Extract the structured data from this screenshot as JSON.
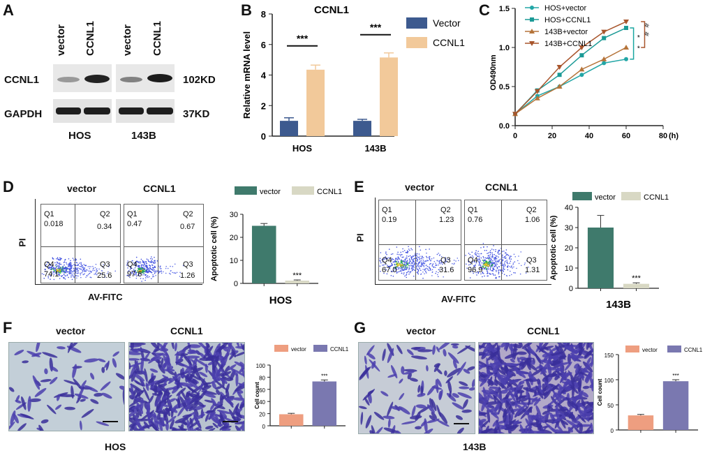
{
  "panels": [
    "A",
    "B",
    "C",
    "D",
    "E",
    "F",
    "G"
  ],
  "panelA": {
    "lanes": [
      "vector",
      "CCNL1",
      "vector",
      "CCNL1"
    ],
    "proteins": [
      "CCNL1",
      "GAPDH"
    ],
    "sizes": [
      "102KD",
      "37KD"
    ],
    "cell_lines": [
      "HOS",
      "143B"
    ]
  },
  "panelD": {
    "conditions": [
      "vector",
      "CCNL1"
    ],
    "y_label": "PI",
    "x_label": "AV-FITC",
    "quadrants": [
      {
        "q1": "Q1",
        "v1": "0.018",
        "q2": "Q2",
        "v2": "0.34",
        "q4": "Q4",
        "v4": "74.1",
        "q3": "Q3",
        "v3": "25.6"
      },
      {
        "q1": "Q1",
        "v1": "0.47",
        "q2": "Q2",
        "v2": "0.67",
        "q4": "Q4",
        "v4": "97.6",
        "q3": "Q3",
        "v3": "1.26"
      }
    ]
  },
  "panelE": {
    "conditions": [
      "vector",
      "CCNL1"
    ],
    "y_label": "PI",
    "x_label": "AV-FITC",
    "quadrants": [
      {
        "q1": "Q1",
        "v1": "0.19",
        "q2": "Q2",
        "v2": "1.23",
        "q4": "Q4",
        "v4": "67.0",
        "q3": "Q3",
        "v3": "31.6"
      },
      {
        "q1": "Q1",
        "v1": "0.76",
        "q2": "Q2",
        "v2": "1.06",
        "q4": "Q4",
        "v4": "96.9",
        "q3": "Q3",
        "v3": "1.31"
      }
    ]
  },
  "panelF": {
    "conditions": [
      "vector",
      "CCNL1"
    ],
    "cell_line": "HOS"
  },
  "panelG": {
    "conditions": [
      "vector",
      "CCNL1"
    ],
    "cell_line": "143B"
  },
  "colors": {
    "vector_blue": "#3d5a8f",
    "ccnl1_peach": "#f2c99a",
    "teal_green": "#3f7a6c",
    "beige": "#d8d8c4",
    "salmon": "#ee9e80",
    "purple": "#7a78b0",
    "hos_vector": "#22a6a6",
    "hos_ccnl1": "#1b9a96",
    "b143_vector": "#b5743a",
    "b143_ccnl1": "#a8552c"
  },
  "chart_data": [
    {
      "id": "B",
      "type": "bar",
      "title": "CCNL1",
      "categories": [
        "HOS",
        "143B"
      ],
      "series": [
        {
          "name": "Vector",
          "values": [
            1.0,
            1.0
          ],
          "errors": [
            0.2,
            0.1
          ]
        },
        {
          "name": "CCNL1",
          "values": [
            4.35,
            5.15
          ],
          "errors": [
            0.3,
            0.3
          ]
        }
      ],
      "xlabel": "",
      "ylabel": "Relative mRNA level",
      "ylim": [
        0,
        8
      ],
      "yticks": [
        "0",
        "2",
        "4",
        "6",
        "8"
      ],
      "annotations": [
        "***",
        "***"
      ],
      "legend": "top-right"
    },
    {
      "id": "C",
      "type": "line",
      "title": "",
      "xlabel": "(h)",
      "ylabel": "OD490nm",
      "xlim": [
        0,
        80
      ],
      "ylim": [
        0,
        1.5
      ],
      "xticks": [
        "0",
        "20",
        "40",
        "60",
        "80"
      ],
      "yticks": [
        "0.0",
        "0.5",
        "1.0",
        "1.5"
      ],
      "x": [
        0,
        12,
        24,
        36,
        48,
        60
      ],
      "series": [
        {
          "name": "HOS+vector",
          "values": [
            0.15,
            0.38,
            0.5,
            0.65,
            0.8,
            0.85
          ]
        },
        {
          "name": "HOS+CCNL1",
          "values": [
            0.15,
            0.45,
            0.65,
            0.9,
            1.12,
            1.25
          ]
        },
        {
          "name": "143B+vector",
          "values": [
            0.15,
            0.35,
            0.5,
            0.72,
            0.85,
            1.0
          ]
        },
        {
          "name": "143B+CCNL1",
          "values": [
            0.15,
            0.44,
            0.75,
            1.0,
            1.2,
            1.33
          ]
        }
      ],
      "annotations": [
        "*",
        "*",
        "#",
        "#"
      ],
      "legend": "top-left"
    },
    {
      "id": "D",
      "type": "bar",
      "categories": [
        "vector",
        "CCNL1"
      ],
      "values": [
        25.0,
        1.2
      ],
      "errors": [
        1.0,
        0.3
      ],
      "xlabel": "HOS",
      "ylabel": "Apoptotic cell (%)",
      "ylim": [
        0,
        30
      ],
      "yticks": [
        "0",
        "10",
        "20",
        "30"
      ],
      "legend_labels": [
        "vector",
        "CCNL1"
      ],
      "annotations": [
        "***"
      ],
      "legend": "top"
    },
    {
      "id": "E",
      "type": "bar",
      "categories": [
        "vector",
        "CCNL1"
      ],
      "values": [
        30.0,
        2.2
      ],
      "errors": [
        6.0,
        0.5
      ],
      "xlabel": "143B",
      "ylabel": "Apoptotic cell (%)",
      "ylim": [
        0,
        40
      ],
      "yticks": [
        "0",
        "10",
        "20",
        "30",
        "40"
      ],
      "legend_labels": [
        "vector",
        "CCNL1"
      ],
      "annotations": [
        "***"
      ],
      "legend": "top"
    },
    {
      "id": "F",
      "type": "bar",
      "categories": [
        "vector",
        "CCNL1"
      ],
      "values": [
        19.0,
        73.0
      ],
      "errors": [
        1.5,
        2.5
      ],
      "xlabel": "",
      "ylabel": "Cell count",
      "ylim": [
        0,
        100
      ],
      "yticks": [
        "0",
        "20",
        "40",
        "60",
        "80",
        "100"
      ],
      "legend_labels": [
        "vector",
        "CCNL1"
      ],
      "annotations": [
        "***"
      ],
      "legend": "top"
    },
    {
      "id": "G",
      "type": "bar",
      "categories": [
        "vector",
        "CCNL1"
      ],
      "values": [
        29.0,
        97.0
      ],
      "errors": [
        2.0,
        3.0
      ],
      "xlabel": "",
      "ylabel": "Cell count",
      "ylim": [
        0,
        150
      ],
      "yticks": [
        "0",
        "50",
        "100",
        "150"
      ],
      "legend_labels": [
        "vector",
        "CCNL1"
      ],
      "annotations": [
        "***"
      ],
      "legend": "top"
    }
  ]
}
